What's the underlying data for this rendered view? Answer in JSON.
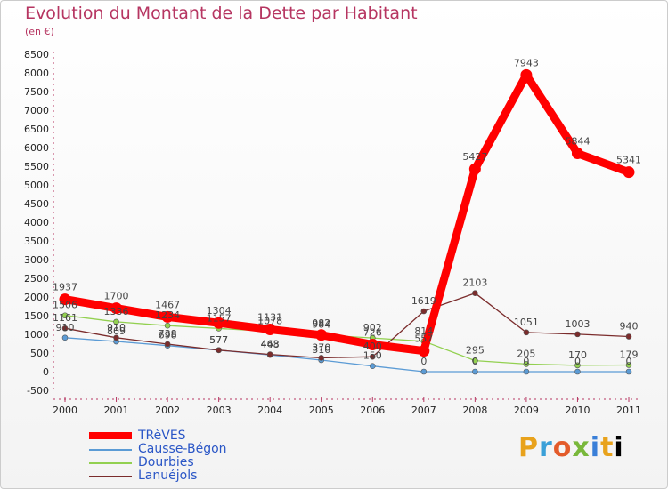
{
  "chart_data": {
    "type": "line",
    "title": "Evolution du Montant de la Dette par Habitant",
    "subtitle": "(en €)",
    "categories": [
      "2000",
      "2001",
      "2002",
      "2003",
      "2004",
      "2005",
      "2006",
      "2007",
      "2008",
      "2009",
      "2010",
      "2011"
    ],
    "ylim": [
      -500,
      8500
    ],
    "yticks": [
      -500,
      0,
      500,
      1000,
      1500,
      2000,
      2500,
      3000,
      3500,
      4000,
      4500,
      5000,
      5500,
      6000,
      6500,
      7000,
      7500,
      8000,
      8500
    ],
    "series": [
      {
        "name": "TRèVES",
        "color": "#ff0000",
        "values": [
          1937,
          1700,
          1467,
          1304,
          1131,
          982,
          726,
          557,
          5427,
          7943,
          5844,
          5341
        ]
      },
      {
        "name": "Causse-Bégon",
        "color": "#5b9bd5",
        "values": [
          910,
          809,
          698,
          577,
          448,
          310,
          150,
          0,
          0,
          0,
          0,
          0
        ]
      },
      {
        "name": "Dourbies",
        "color": "#92d050",
        "values": [
          1506,
          1336,
          1234,
          1157,
          1078,
          984,
          902,
          814,
          295,
          205,
          170,
          179
        ]
      },
      {
        "name": "Lanuéjols",
        "color": "#7b2c2c",
        "values": [
          1161,
          910,
          738,
          577,
          463,
          370,
          400,
          1619,
          2103,
          1051,
          1003,
          940
        ]
      }
    ],
    "data_labels": [
      {
        "series": 0,
        "index": 0,
        "text": "1937"
      },
      {
        "series": 0,
        "index": 1,
        "text": "1700"
      },
      {
        "series": 0,
        "index": 2,
        "text": "1467"
      },
      {
        "series": 0,
        "index": 3,
        "text": "1304"
      },
      {
        "series": 0,
        "index": 4,
        "text": "1131"
      },
      {
        "series": 0,
        "index": 5,
        "text": "982"
      },
      {
        "series": 0,
        "index": 6,
        "text": "726"
      },
      {
        "series": 0,
        "index": 7,
        "text": "557"
      },
      {
        "series": 0,
        "index": 8,
        "text": "5427"
      },
      {
        "series": 0,
        "index": 9,
        "text": "7943"
      },
      {
        "series": 0,
        "index": 10,
        "text": "5844"
      },
      {
        "series": 0,
        "index": 11,
        "text": "5341"
      },
      {
        "series": 1,
        "index": 0,
        "text": "910"
      },
      {
        "series": 1,
        "index": 1,
        "text": "809"
      },
      {
        "series": 1,
        "index": 2,
        "text": "698"
      },
      {
        "series": 1,
        "index": 3,
        "text": "577"
      },
      {
        "series": 1,
        "index": 4,
        "text": "448"
      },
      {
        "series": 1,
        "index": 5,
        "text": "310"
      },
      {
        "series": 1,
        "index": 6,
        "text": "150"
      },
      {
        "series": 1,
        "index": 7,
        "text": "0"
      },
      {
        "series": 1,
        "index": 8,
        "text": "0"
      },
      {
        "series": 1,
        "index": 9,
        "text": "0"
      },
      {
        "series": 1,
        "index": 10,
        "text": "0"
      },
      {
        "series": 1,
        "index": 11,
        "text": "0"
      },
      {
        "series": 2,
        "index": 0,
        "text": "1506"
      },
      {
        "series": 2,
        "index": 1,
        "text": "1336"
      },
      {
        "series": 2,
        "index": 2,
        "text": "1234"
      },
      {
        "series": 2,
        "index": 3,
        "text": "1157"
      },
      {
        "series": 2,
        "index": 4,
        "text": "1078"
      },
      {
        "series": 2,
        "index": 5,
        "text": "984"
      },
      {
        "series": 2,
        "index": 6,
        "text": "902"
      },
      {
        "series": 2,
        "index": 7,
        "text": "814"
      },
      {
        "series": 2,
        "index": 8,
        "text": "295"
      },
      {
        "series": 2,
        "index": 9,
        "text": "205"
      },
      {
        "series": 2,
        "index": 10,
        "text": "170"
      },
      {
        "series": 2,
        "index": 11,
        "text": "179"
      },
      {
        "series": 3,
        "index": 0,
        "text": "1161"
      },
      {
        "series": 3,
        "index": 1,
        "text": "910"
      },
      {
        "series": 3,
        "index": 2,
        "text": "738"
      },
      {
        "series": 3,
        "index": 3,
        "text": "577"
      },
      {
        "series": 3,
        "index": 4,
        "text": "463"
      },
      {
        "series": 3,
        "index": 5,
        "text": "370"
      },
      {
        "series": 3,
        "index": 6,
        "text": "400"
      },
      {
        "series": 3,
        "index": 7,
        "text": "1619"
      },
      {
        "series": 3,
        "index": 8,
        "text": "2103"
      },
      {
        "series": 3,
        "index": 9,
        "text": "1051"
      },
      {
        "series": 3,
        "index": 10,
        "text": "1003"
      },
      {
        "series": 3,
        "index": 11,
        "text": "940"
      }
    ],
    "grid": false,
    "legend_position": "bottom-left"
  },
  "logo": {
    "letters": [
      "P",
      "r",
      "o",
      "x",
      "i",
      "t",
      "i"
    ]
  }
}
